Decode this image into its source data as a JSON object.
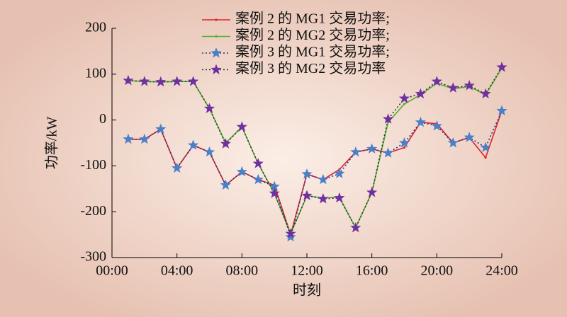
{
  "chart_data": {
    "type": "line",
    "x": [
      1,
      2,
      3,
      4,
      5,
      6,
      7,
      8,
      9,
      10,
      11,
      12,
      13,
      14,
      15,
      16,
      17,
      18,
      19,
      20,
      21,
      22,
      23,
      24
    ],
    "xlabel": "时刻",
    "ylabel": "功率/kW",
    "xlim": [
      0,
      24
    ],
    "xticks": [
      {
        "value": 0,
        "label": "00:00"
      },
      {
        "value": 4,
        "label": "04:00"
      },
      {
        "value": 8,
        "label": "08:00"
      },
      {
        "value": 12,
        "label": "12:00"
      },
      {
        "value": 16,
        "label": "16:00"
      },
      {
        "value": 20,
        "label": "20:00"
      },
      {
        "value": 24,
        "label": "24:00"
      }
    ],
    "ylim": [
      -300,
      200
    ],
    "yticks": [
      -300,
      -200,
      -100,
      0,
      100,
      200
    ],
    "series": [
      {
        "name": "案例 2 的 MG1 交易功率;",
        "color": "#e0202a",
        "marker": "dot",
        "dashed": false,
        "values": [
          -42,
          -42,
          -20,
          -105,
          -55,
          -70,
          -142,
          -113,
          -130,
          -142,
          -250,
          -118,
          -130,
          -108,
          -70,
          -63,
          -72,
          -60,
          -5,
          -8,
          -50,
          -38,
          -82,
          20
        ]
      },
      {
        "name": "案例 2 的 MG2 交易功率;",
        "color": "#50b030",
        "marker": "dot",
        "dashed": false,
        "values": [
          86,
          84,
          83,
          84,
          84,
          25,
          -50,
          -15,
          -95,
          -160,
          -248,
          -165,
          -170,
          -168,
          -235,
          -158,
          -5,
          35,
          55,
          80,
          68,
          73,
          55,
          113
        ]
      },
      {
        "name": "案例 3 的 MG1 交易功率;",
        "color": "#4a80c8",
        "marker": "star",
        "dashed": true,
        "values": [
          -42,
          -42,
          -20,
          -105,
          -55,
          -70,
          -142,
          -113,
          -130,
          -145,
          -255,
          -118,
          -130,
          -117,
          -70,
          -63,
          -72,
          -50,
          -5,
          -13,
          -50,
          -38,
          -60,
          20
        ]
      },
      {
        "name": "案例 3 的 MG2 交易功率",
        "color": "#7030a0",
        "marker": "star",
        "dashed": true,
        "values": [
          86,
          84,
          83,
          84,
          84,
          25,
          -52,
          -15,
          -95,
          -160,
          -248,
          -165,
          -172,
          -170,
          -235,
          -158,
          2,
          47,
          57,
          84,
          70,
          75,
          57,
          115
        ]
      }
    ]
  }
}
